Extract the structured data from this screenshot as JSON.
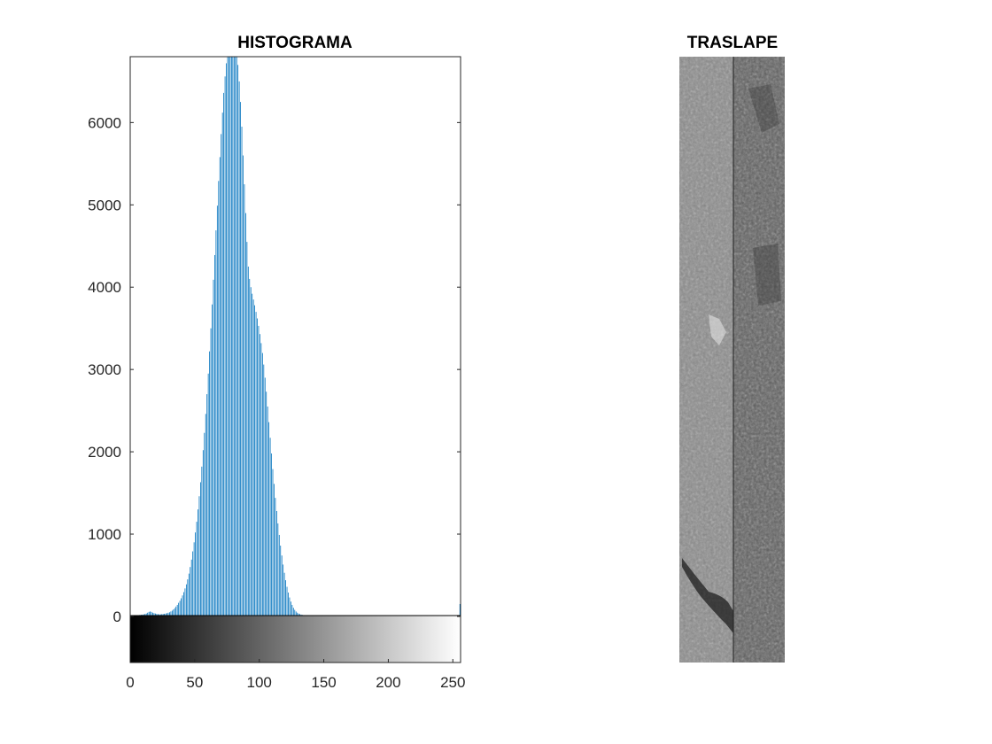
{
  "chart_data": [
    {
      "type": "bar",
      "title": "HISTOGRAMA",
      "xlabel": "",
      "ylabel": "",
      "xlim": [
        0,
        256
      ],
      "ylim": [
        -560,
        6800
      ],
      "xticks": [
        "0",
        "50",
        "100",
        "150",
        "200",
        "250"
      ],
      "yticks": [
        "0",
        "1000",
        "2000",
        "3000",
        "4000",
        "5000",
        "6000"
      ],
      "bar_color": "#0072BD",
      "colorbar": "grayscale 0-255 below axis",
      "bins": "0..255",
      "values": [
        0,
        0,
        0,
        5,
        8,
        12,
        15,
        18,
        20,
        22,
        25,
        30,
        35,
        45,
        55,
        60,
        55,
        45,
        40,
        35,
        30,
        28,
        25,
        25,
        28,
        30,
        32,
        35,
        40,
        45,
        50,
        60,
        70,
        85,
        100,
        120,
        140,
        165,
        190,
        220,
        255,
        295,
        340,
        390,
        450,
        520,
        600,
        690,
        790,
        900,
        1020,
        1150,
        1300,
        1460,
        1630,
        1820,
        2020,
        2230,
        2460,
        2700,
        2950,
        3220,
        3500,
        3790,
        4090,
        4390,
        4690,
        4990,
        5290,
        5580,
        5860,
        6120,
        6360,
        6560,
        6720,
        6800,
        6800,
        6800,
        6800,
        6800,
        6800,
        6800,
        6800,
        6700,
        6500,
        6250,
        5950,
        5600,
        5250,
        4900,
        4550,
        4250,
        4100,
        4000,
        3920,
        3850,
        3780,
        3700,
        3620,
        3530,
        3430,
        3320,
        3200,
        3060,
        2900,
        2730,
        2550,
        2360,
        2170,
        1980,
        1790,
        1610,
        1440,
        1280,
        1130,
        990,
        860,
        740,
        630,
        530,
        440,
        360,
        290,
        230,
        180,
        140,
        105,
        80,
        60,
        45,
        35,
        28,
        22,
        18,
        15,
        12,
        10,
        8,
        7,
        6,
        5,
        4,
        4,
        3,
        3,
        2,
        2,
        2,
        1,
        1,
        1,
        1,
        0,
        0,
        0,
        0,
        0,
        0,
        0,
        0,
        0,
        0,
        0,
        0,
        0,
        0,
        0,
        0,
        0,
        0,
        0,
        0,
        0,
        0,
        0,
        0,
        0,
        0,
        0,
        0,
        0,
        0,
        0,
        0,
        0,
        0,
        0,
        0,
        0,
        0,
        0,
        0,
        0,
        0,
        0,
        0,
        0,
        0,
        0,
        0,
        0,
        0,
        0,
        0,
        0,
        0,
        0,
        0,
        0,
        0,
        0,
        0,
        0,
        0,
        0,
        0,
        0,
        0,
        0,
        0,
        0,
        0,
        0,
        0,
        0,
        0,
        0,
        0,
        0,
        0,
        0,
        0,
        0,
        0,
        0,
        0,
        0,
        0,
        0,
        0,
        0,
        0,
        0,
        0,
        0,
        0,
        0,
        0,
        0,
        0,
        0,
        0,
        0,
        0,
        0,
        150
      ]
    }
  ],
  "image_panel": {
    "title": "TRASLAPE",
    "description_icon": "grayscale-satellite-image"
  }
}
